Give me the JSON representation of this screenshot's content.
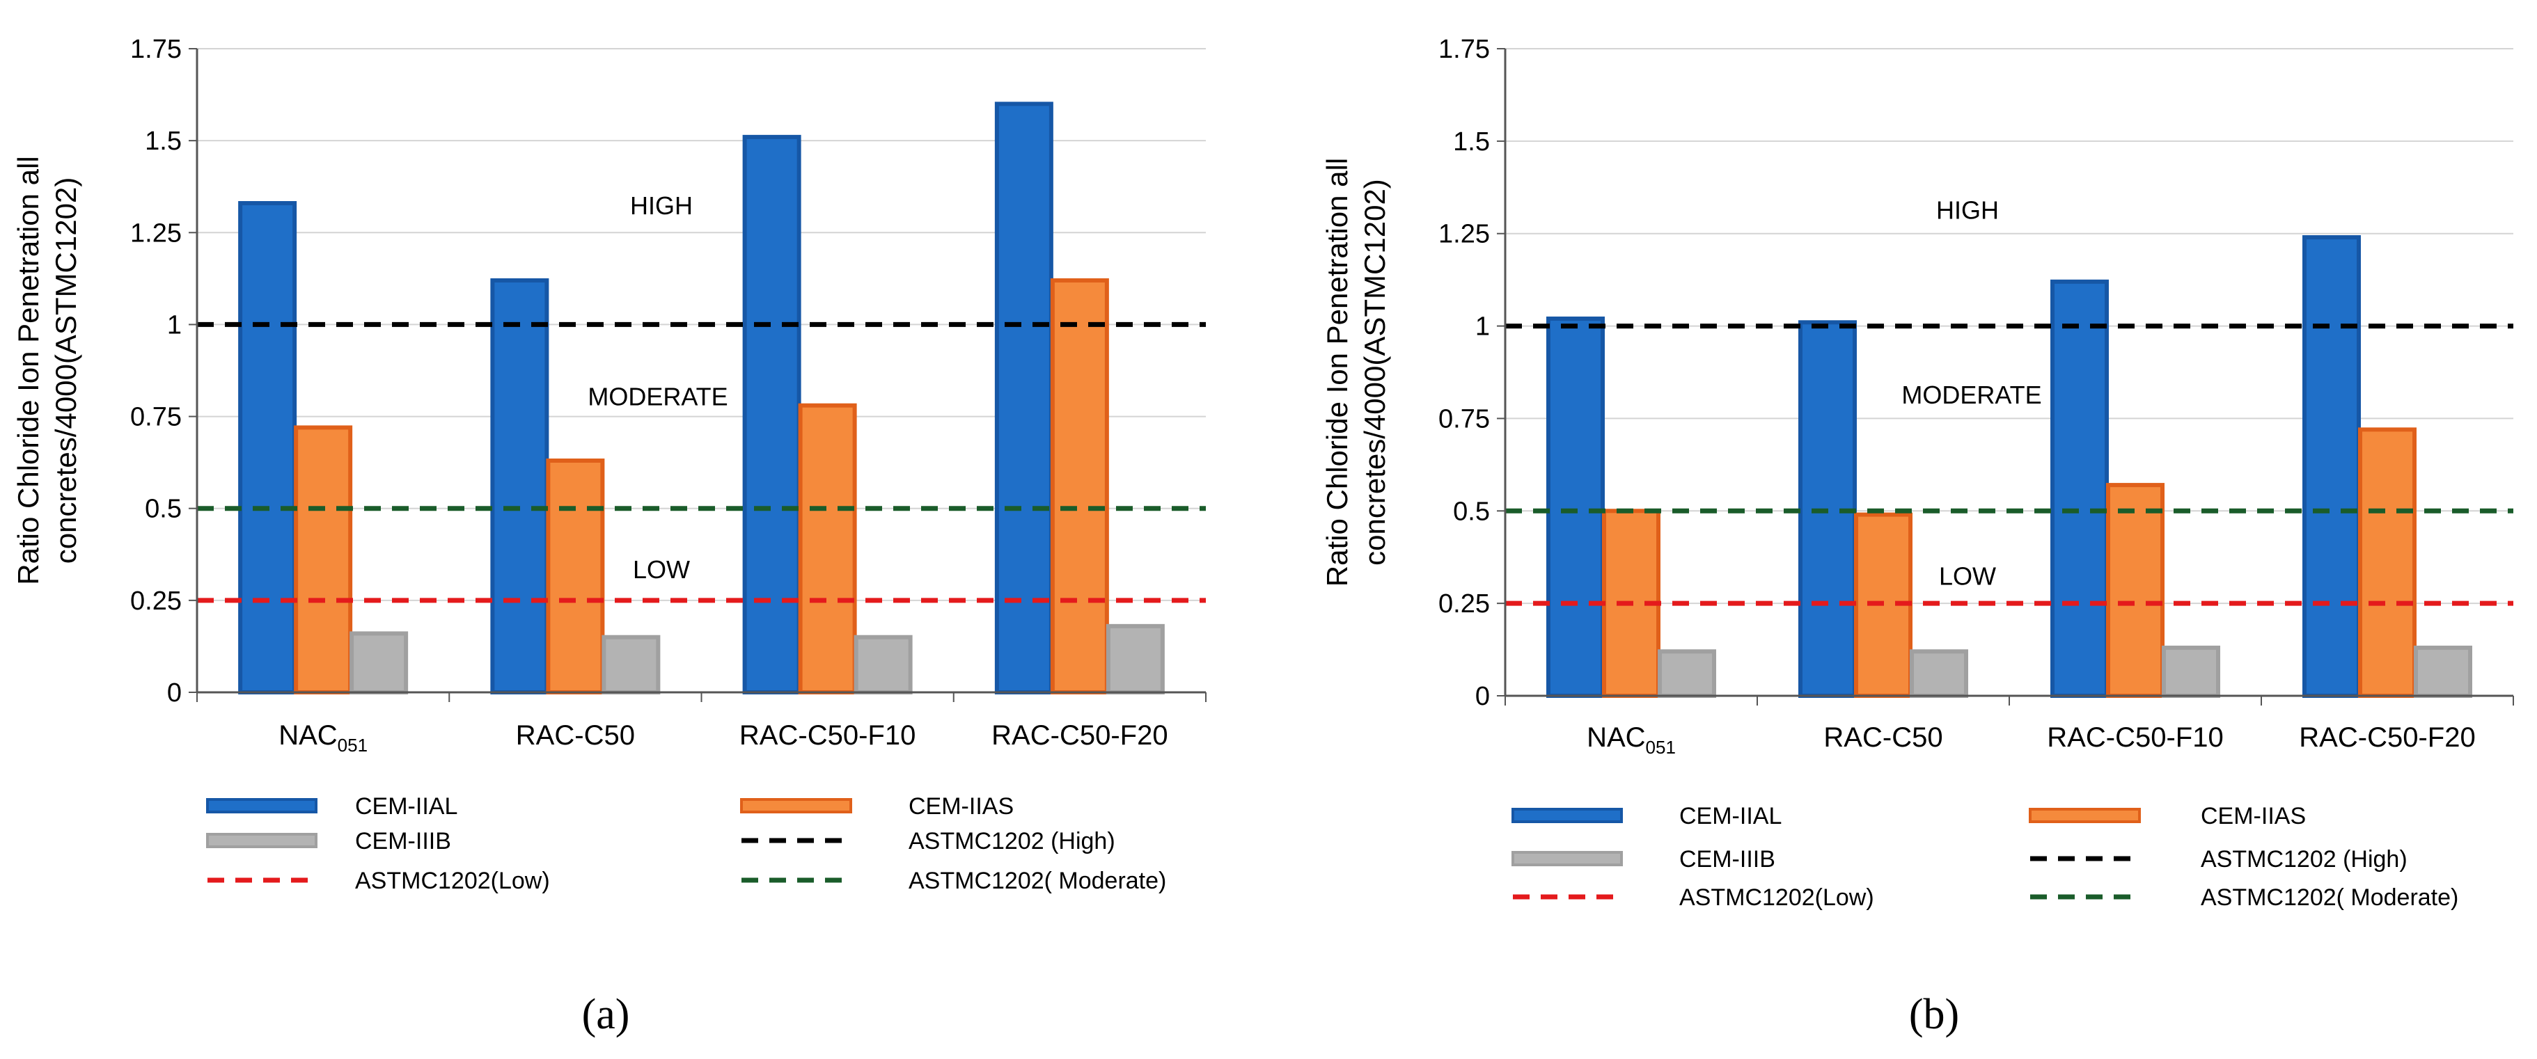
{
  "chart_data": [
    {
      "type": "bar",
      "panel_label": "(a)",
      "categories": [
        "NAC051",
        "RAC-C50",
        "RAC-C50-F10",
        "RAC-C50-F20"
      ],
      "category_labels": [
        {
          "main": "NAC",
          "sub": "051"
        },
        {
          "main": "RAC-C50",
          "sub": ""
        },
        {
          "main": "RAC-C50-F10",
          "sub": ""
        },
        {
          "main": "RAC-C50-F20",
          "sub": ""
        }
      ],
      "series": [
        {
          "name": "CEM-IIAL",
          "color": "#1f6fc8",
          "edge": "#1657a6",
          "values": [
            1.33,
            1.12,
            1.51,
            1.6
          ]
        },
        {
          "name": "CEM-IIAS",
          "color": "#f58a3c",
          "edge": "#e0601a",
          "values": [
            0.72,
            0.63,
            0.78,
            1.12
          ]
        },
        {
          "name": "CEM-IIIB",
          "color": "#b3b3b3",
          "edge": "#a0a0a0",
          "values": [
            0.16,
            0.15,
            0.15,
            0.18
          ]
        }
      ],
      "reference_lines": [
        {
          "name": "ASTMC1202 (High)",
          "value": 1.0,
          "color": "#000000"
        },
        {
          "name": "ASTMC1202(Low)",
          "value": 0.25,
          "color": "#e41a1c"
        },
        {
          "name": "ASTMC1202( Moderate)",
          "value": 0.5,
          "color": "#1a5c2a"
        }
      ],
      "zone_labels": [
        {
          "text": "HIGH",
          "value": 1.3
        },
        {
          "text": "MODERATE",
          "value": 0.78
        },
        {
          "text": "LOW",
          "value": 0.31
        }
      ],
      "ylabel_lines": [
        "Ratio Chloride  Ion Penetration all",
        "concretes/4000(ASTMC1202)"
      ],
      "ylim": [
        0,
        1.75
      ],
      "yticks": [
        0,
        0.25,
        0.5,
        0.75,
        1,
        1.25,
        1.5,
        1.75
      ],
      "ytick_labels": [
        "0",
        "0.25",
        "0.5",
        "0.75",
        "1",
        "1.25",
        "1.5",
        "1.75"
      ],
      "grid": true,
      "legend_position": "bottom"
    },
    {
      "type": "bar",
      "panel_label": "(b)",
      "categories": [
        "NAC051",
        "RAC-C50",
        "RAC-C50-F10",
        "RAC-C50-F20"
      ],
      "category_labels": [
        {
          "main": "NAC",
          "sub": "051"
        },
        {
          "main": "RAC-C50",
          "sub": ""
        },
        {
          "main": "RAC-C50-F10",
          "sub": ""
        },
        {
          "main": "RAC-C50-F20",
          "sub": ""
        }
      ],
      "series": [
        {
          "name": "CEM-IIAL",
          "color": "#1f6fc8",
          "edge": "#1657a6",
          "values": [
            1.02,
            1.01,
            1.12,
            1.24
          ]
        },
        {
          "name": "CEM-IIAS",
          "color": "#f58a3c",
          "edge": "#e0601a",
          "values": [
            0.5,
            0.49,
            0.57,
            0.72
          ]
        },
        {
          "name": "CEM-IIIB",
          "color": "#b3b3b3",
          "edge": "#a0a0a0",
          "values": [
            0.12,
            0.12,
            0.13,
            0.13
          ]
        }
      ],
      "reference_lines": [
        {
          "name": "ASTMC1202 (High)",
          "value": 1.0,
          "color": "#000000"
        },
        {
          "name": "ASTMC1202(Low)",
          "value": 0.25,
          "color": "#e41a1c"
        },
        {
          "name": "ASTMC1202( Moderate)",
          "value": 0.5,
          "color": "#1a5c2a"
        }
      ],
      "zone_labels": [
        {
          "text": "HIGH",
          "value": 1.29
        },
        {
          "text": "MODERATE",
          "value": 0.79
        },
        {
          "text": "LOW",
          "value": 0.3
        }
      ],
      "ylabel_lines": [
        "Ratio Chloride  Ion Penetration all",
        "concretes/4000(ASTMC1202)"
      ],
      "ylim": [
        0,
        1.75
      ],
      "yticks": [
        0,
        0.25,
        0.5,
        0.75,
        1,
        1.25,
        1.5,
        1.75
      ],
      "ytick_labels": [
        "0",
        "0.25",
        "0.5",
        "0.75",
        "1",
        "1.25",
        "1.5",
        "1.75"
      ],
      "grid": true,
      "legend_position": "bottom"
    }
  ]
}
